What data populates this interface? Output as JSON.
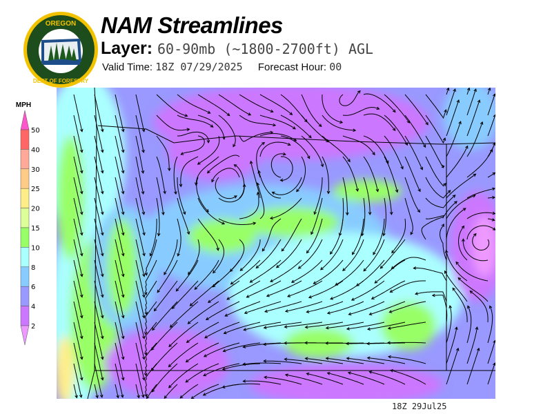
{
  "header": {
    "title": "NAM Streamlines",
    "layer_label": "Layer:",
    "layer_value": "60-90mb (~1800-2700ft) AGL",
    "valid_time_label": "Valid Time:",
    "valid_time_value": "18Z 07/29/2025",
    "forecast_hour_label": "Forecast Hour:",
    "forecast_hour_value": "00"
  },
  "logo": {
    "text": "OREGON DEPARTMENT OF FORESTRY",
    "colors": {
      "ring": "#f2c200",
      "field": "#1d4d1d"
    }
  },
  "legend": {
    "unit": "MPH",
    "ticks": [
      "50",
      "40",
      "30",
      "25",
      "20",
      "15",
      "10",
      "8",
      "6",
      "4",
      "2"
    ],
    "bins": [
      {
        "range": "40-50",
        "color": "#ff6666"
      },
      {
        "range": "30-40",
        "color": "#ffaa99"
      },
      {
        "range": "25-30",
        "color": "#ffcc88"
      },
      {
        "range": "20-25",
        "color": "#ffee88"
      },
      {
        "range": "15-20",
        "color": "#ddff99"
      },
      {
        "range": "10-15",
        "color": "#99ff66"
      },
      {
        "range": "8-10",
        "color": "#aaffff"
      },
      {
        "range": "6-8",
        "color": "#88ccff"
      },
      {
        "range": "4-6",
        "color": "#9999ff"
      },
      {
        "range": "2-4",
        "color": "#cc77ff"
      }
    ],
    "over_color": "#ff55cc",
    "under_color": "#ee99ff"
  },
  "footer": {
    "timestamp": "18Z 29Jul25"
  }
}
